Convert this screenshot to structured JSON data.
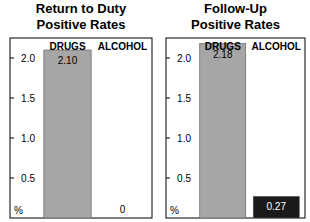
{
  "chart_data": [
    {
      "type": "bar",
      "title": "Return to Duty\nPositive Rates",
      "categories": [
        "DRUGS",
        "ALCOHOL"
      ],
      "values": [
        2.1,
        0
      ],
      "value_labels": [
        "2.10",
        "0"
      ],
      "colors": [
        "#a6a6a6",
        "#1a1a1a"
      ],
      "ylabel": "%",
      "ylim": [
        0,
        2.25
      ],
      "yticks": [
        0.5,
        {
          "value": 1,
          "label": "1.0"
        },
        1.5,
        {
          "value": 2,
          "label": "2.0"
        }
      ],
      "data_labels": true
    },
    {
      "type": "bar",
      "title": "Follow-Up\nPositive Rates",
      "categories": [
        "DRUGS",
        "ALCOHOL"
      ],
      "values": [
        2.18,
        0.27
      ],
      "value_labels": [
        "2.18",
        "0.27"
      ],
      "colors": [
        "#a6a6a6",
        "#1a1a1a"
      ],
      "ylabel": "%",
      "ylim": [
        0,
        2.25
      ],
      "yticks": [
        0.5,
        {
          "value": 1,
          "label": "1.0"
        },
        1.5,
        {
          "value": 2,
          "label": "2.0"
        }
      ],
      "data_labels": true
    }
  ]
}
